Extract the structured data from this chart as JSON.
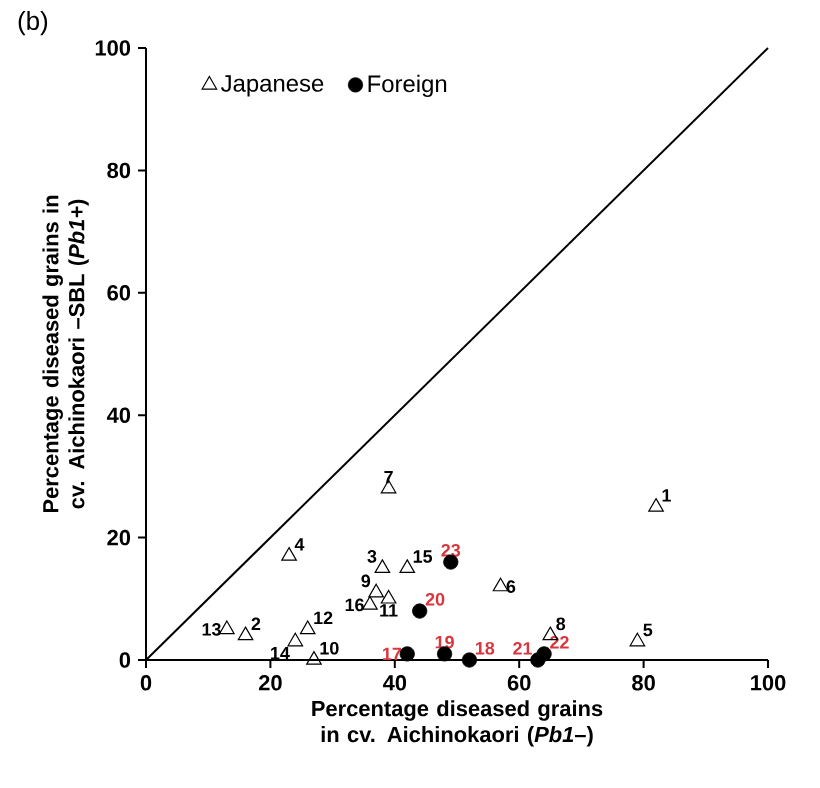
{
  "chart_data": {
    "type": "scatter",
    "annotations": [
      "(b)",
      {
        "text": "1",
        "x": 82,
        "y": 25
      },
      {
        "text": "2",
        "x": 16,
        "y": 4
      },
      {
        "text": "3",
        "x": 38,
        "y": 15
      },
      {
        "text": "4",
        "x": 23,
        "y": 17
      },
      {
        "text": "5",
        "x": 79,
        "y": 3
      },
      {
        "text": "6",
        "x": 57,
        "y": 12
      },
      {
        "text": "7",
        "x": 39,
        "y": 28
      },
      {
        "text": "8",
        "x": 65,
        "y": 4
      },
      {
        "text": "9",
        "x": 37,
        "y": 11
      },
      {
        "text": "10",
        "x": 27,
        "y": 0
      },
      {
        "text": "11",
        "x": 39,
        "y": 10
      },
      {
        "text": "12",
        "x": 26,
        "y": 5
      },
      {
        "text": "13",
        "x": 13,
        "y": 5
      },
      {
        "text": "14",
        "x": 24,
        "y": 3
      },
      {
        "text": "15",
        "x": 42,
        "y": 15
      },
      {
        "text": "16",
        "x": 36,
        "y": 9
      },
      {
        "text": "17",
        "x": 42,
        "y": 1
      },
      {
        "text": "18",
        "x": 52,
        "y": 0
      },
      {
        "text": "19",
        "x": 48,
        "y": 1
      },
      {
        "text": "20",
        "x": 44,
        "y": 8
      },
      {
        "text": "21",
        "x": 63,
        "y": 0
      },
      {
        "text": "22",
        "x": 64,
        "y": 1
      },
      {
        "text": "23",
        "x": 49,
        "y": 16
      }
    ],
    "xlabel": "Percentage diseased grains in cv. Aichinokaori (*Pb1*–)",
    "ylabel": "Percentage diseased grains in cv. Aichinokaori –SBL (*Pb1+*)",
    "xlim": [
      0,
      100
    ],
    "ylim": [
      0,
      100
    ],
    "xticks": [
      0,
      20,
      40,
      60,
      80,
      100
    ],
    "yticks": [
      0,
      20,
      40,
      60,
      80,
      100
    ],
    "grid": false,
    "legend": "top left",
    "series": [
      {
        "name": "Japanese",
        "color": "#000000",
        "marker": "triangle",
        "x": [
          82,
          16,
          38,
          23,
          79,
          57,
          39,
          65,
          37,
          27,
          39,
          26,
          13,
          24,
          42,
          36
        ],
        "values": [
          25,
          4,
          15,
          17,
          3,
          12,
          28,
          4,
          11,
          0,
          10,
          5,
          5,
          3,
          15,
          9
        ]
      },
      {
        "name": "Foreign",
        "color": "#000000",
        "marker": "circle",
        "x": [
          42,
          52,
          48,
          44,
          63,
          64,
          49
        ],
        "values": [
          1,
          0,
          1,
          8,
          0,
          1,
          16
        ]
      },
      {
        "type": "line",
        "color": "#000000",
        "marker": "none",
        "x": [
          0,
          100
        ],
        "values": [
          0,
          100
        ]
      }
    ]
  }
}
